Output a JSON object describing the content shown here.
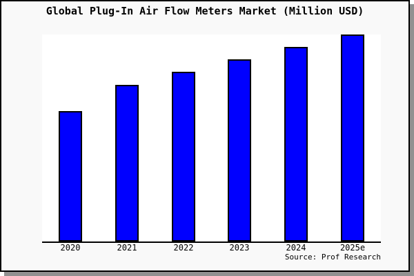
{
  "header": {
    "title": "Global Plug-In Air Flow Meters Market (Million USD)"
  },
  "footer": {
    "source": "Source: Prof Research"
  },
  "colors": {
    "bar_fill": "#0000ff",
    "bar_border": "#000000",
    "axis": "#000000",
    "canvas_background": "#f9f9f9",
    "plot_background": "#ffffff",
    "frame_border": "#000000",
    "frame_shadow": "#919191",
    "text": "#000000"
  },
  "chart_data": {
    "type": "bar",
    "title": "Global Plug-In Air Flow Meters Market (Million USD)",
    "categories": [
      "2020",
      "2021",
      "2022",
      "2023",
      "2024",
      "2025e"
    ],
    "values": [
      63,
      75.5,
      82,
      88,
      94,
      100
    ],
    "values_unit": "relative height, % of tallest bar (no y-axis scale shown)",
    "xlabel": "",
    "ylabel": "",
    "ylim": [
      0,
      100
    ],
    "y_axis_visible": false,
    "gridlines": false,
    "legend": "none",
    "bar_color": "#0000ff",
    "source": "Source: Prof Research"
  }
}
